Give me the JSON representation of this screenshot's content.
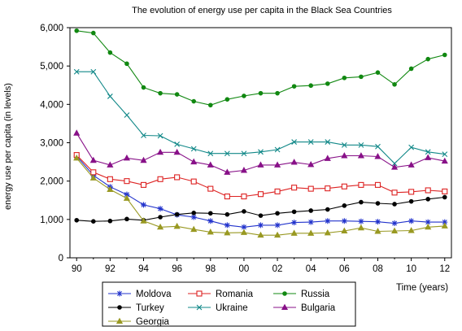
{
  "chart_data": {
    "type": "line",
    "title": "The evolution of energy use per capita in the Black Sea Countries",
    "ylabel": "energy use per capita (in levels)",
    "xlabel": "Time (years)",
    "ylim": [
      0,
      6000
    ],
    "xlim": [
      1989.6,
      2012.4
    ],
    "y_ticks": [
      0,
      1000,
      2000,
      3000,
      4000,
      5000,
      6000
    ],
    "y_tick_labels": [
      "0",
      "1,000",
      "2,000",
      "3,000",
      "4,000",
      "5,000",
      "6,000"
    ],
    "x_ticks": [
      1990,
      1992,
      1994,
      1996,
      1998,
      2000,
      2002,
      2004,
      2006,
      2008,
      2010,
      2012
    ],
    "x_tick_labels": [
      "90",
      "92",
      "94",
      "96",
      "98",
      "00",
      "02",
      "04",
      "06",
      "08",
      "10",
      "12"
    ],
    "x": [
      1990,
      1991,
      1992,
      1993,
      1994,
      1995,
      1996,
      1997,
      1998,
      1999,
      2000,
      2001,
      2002,
      2003,
      2004,
      2005,
      2006,
      2007,
      2008,
      2009,
      2010,
      2011,
      2012
    ],
    "grid": false,
    "legend_position": "bottom",
    "series": [
      {
        "name": "Moldova",
        "color": "#2233cc",
        "marker": "star",
        "values": [
          2650,
          2150,
          1850,
          1650,
          1380,
          1280,
          1120,
          1060,
          960,
          850,
          800,
          850,
          850,
          920,
          930,
          960,
          960,
          950,
          940,
          900,
          960,
          930,
          930
        ]
      },
      {
        "name": "Romania",
        "color": "#dd2222",
        "marker": "square",
        "values": [
          2680,
          2230,
          2050,
          2000,
          1900,
          2050,
          2100,
          1990,
          1800,
          1600,
          1600,
          1660,
          1730,
          1830,
          1800,
          1810,
          1860,
          1900,
          1900,
          1700,
          1720,
          1760,
          1730
        ]
      },
      {
        "name": "Russia",
        "color": "#118811",
        "marker": "dot",
        "values": [
          5920,
          5860,
          5350,
          5060,
          4440,
          4290,
          4260,
          4080,
          3980,
          4130,
          4220,
          4290,
          4290,
          4470,
          4490,
          4540,
          4690,
          4720,
          4830,
          4520,
          4930,
          5180,
          5290
        ]
      },
      {
        "name": "Turkey",
        "color": "#000000",
        "marker": "dot",
        "values": [
          980,
          950,
          960,
          1010,
          980,
          1060,
          1130,
          1170,
          1160,
          1130,
          1210,
          1100,
          1160,
          1200,
          1230,
          1260,
          1360,
          1450,
          1420,
          1400,
          1470,
          1530,
          1580
        ]
      },
      {
        "name": "Ukraine",
        "color": "#118888",
        "marker": "x",
        "values": [
          4850,
          4850,
          4210,
          3720,
          3190,
          3180,
          2960,
          2840,
          2720,
          2720,
          2720,
          2760,
          2820,
          3020,
          3020,
          3020,
          2940,
          2940,
          2900,
          2460,
          2880,
          2760,
          2700
        ]
      },
      {
        "name": "Bulgaria",
        "color": "#881188",
        "marker": "triangle",
        "values": [
          3250,
          2540,
          2420,
          2600,
          2540,
          2750,
          2750,
          2500,
          2420,
          2230,
          2280,
          2420,
          2420,
          2490,
          2430,
          2590,
          2660,
          2660,
          2640,
          2360,
          2420,
          2610,
          2520
        ]
      },
      {
        "name": "Georgia",
        "color": "#999922",
        "marker": "triangle",
        "values": [
          2600,
          2080,
          1780,
          1550,
          960,
          800,
          820,
          740,
          670,
          650,
          660,
          590,
          590,
          640,
          640,
          650,
          700,
          780,
          690,
          700,
          710,
          800,
          830
        ]
      }
    ]
  }
}
